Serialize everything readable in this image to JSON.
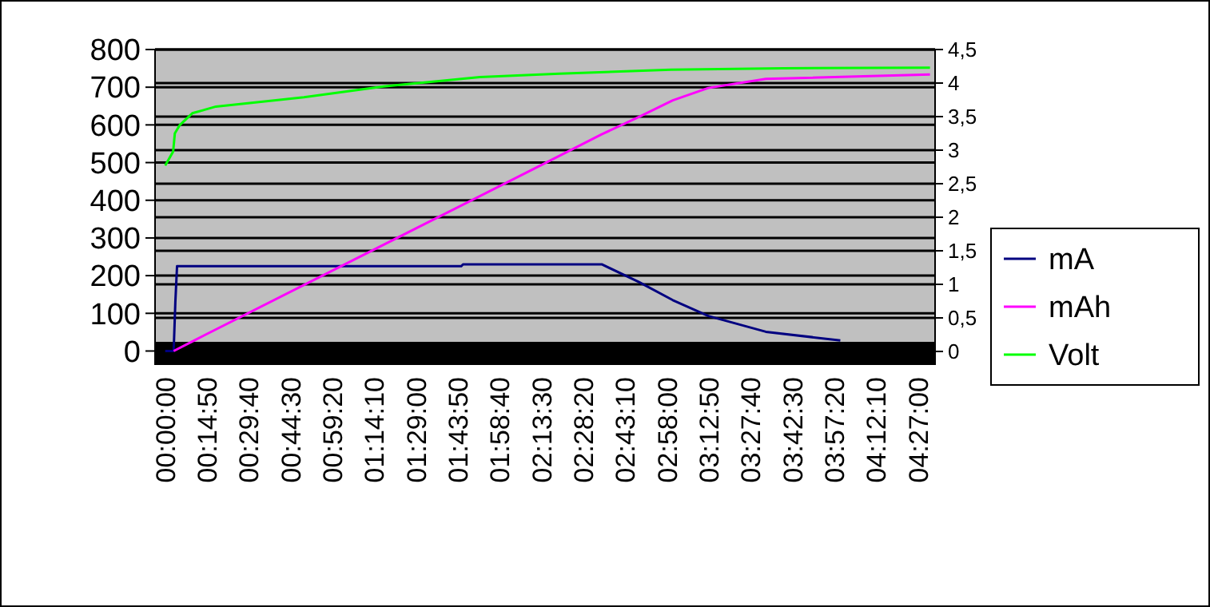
{
  "chart_data": {
    "type": "line",
    "xlim": [
      -0.06,
      4.55
    ],
    "xticks": [
      {
        "value": 0,
        "label": "00:00:00"
      },
      {
        "value": 0.24722,
        "label": "00:14:50"
      },
      {
        "value": 0.49444,
        "label": "00:29:40"
      },
      {
        "value": 0.74167,
        "label": "00:44:30"
      },
      {
        "value": 0.98889,
        "label": "00:59:20"
      },
      {
        "value": 1.23611,
        "label": "01:14:10"
      },
      {
        "value": 1.48333,
        "label": "01:29:00"
      },
      {
        "value": 1.73056,
        "label": "01:43:50"
      },
      {
        "value": 1.97778,
        "label": "01:58:40"
      },
      {
        "value": 2.225,
        "label": "02:13:30"
      },
      {
        "value": 2.47222,
        "label": "02:28:20"
      },
      {
        "value": 2.71944,
        "label": "02:43:10"
      },
      {
        "value": 2.96667,
        "label": "02:58:00"
      },
      {
        "value": 3.21389,
        "label": "03:12:50"
      },
      {
        "value": 3.46111,
        "label": "03:27:40"
      },
      {
        "value": 3.70833,
        "label": "03:42:30"
      },
      {
        "value": 3.95556,
        "label": "03:57:20"
      },
      {
        "value": 4.20278,
        "label": "04:12:10"
      },
      {
        "value": 4.45,
        "label": "04:27:00"
      }
    ],
    "ylim": [
      -35,
      800
    ],
    "yticks": [
      0,
      100,
      200,
      300,
      400,
      500,
      600,
      700,
      800
    ],
    "y2lim": [
      -0.19,
      4.5
    ],
    "y2ticks": [
      {
        "value": 0,
        "label": "0"
      },
      {
        "value": 0.5,
        "label": "0,5"
      },
      {
        "value": 1,
        "label": "1"
      },
      {
        "value": 1.5,
        "label": "1,5"
      },
      {
        "value": 2,
        "label": "2"
      },
      {
        "value": 2.5,
        "label": "2,5"
      },
      {
        "value": 3,
        "label": "3"
      },
      {
        "value": 3.5,
        "label": "3,5"
      },
      {
        "value": 4,
        "label": "4"
      },
      {
        "value": 4.5,
        "label": "4,5"
      }
    ],
    "grid": "y",
    "legend": "right",
    "series": [
      {
        "name": "mA",
        "color": "#000080",
        "x": [
          0,
          0.05,
          0.06,
          0.07,
          1.75,
          1.76,
          2.58,
          2.8,
          3.0,
          3.21,
          3.55,
          3.99
        ],
        "values": [
          0,
          0,
          130,
          225,
          225,
          230,
          230,
          183,
          135,
          93,
          51,
          28
        ]
      },
      {
        "name": "mAh",
        "color": "#ff00ff",
        "x": [
          0.05,
          0.18,
          2.23,
          2.58,
          2.8,
          3.0,
          3.21,
          3.55,
          4.52
        ],
        "values": [
          0,
          30,
          495,
          575,
          621,
          665,
          698,
          722,
          734
        ]
      },
      {
        "name": "Volt",
        "color": "#00ff00",
        "axis": "y2",
        "x": [
          0,
          0.047,
          0.057,
          0.085,
          0.16,
          0.3,
          0.82,
          1.29,
          1.86,
          2.33,
          2.99,
          3.65,
          4.52
        ],
        "values": [
          2.77,
          2.98,
          3.25,
          3.37,
          3.55,
          3.65,
          3.79,
          3.95,
          4.09,
          4.14,
          4.2,
          4.22,
          4.23
        ]
      }
    ]
  }
}
